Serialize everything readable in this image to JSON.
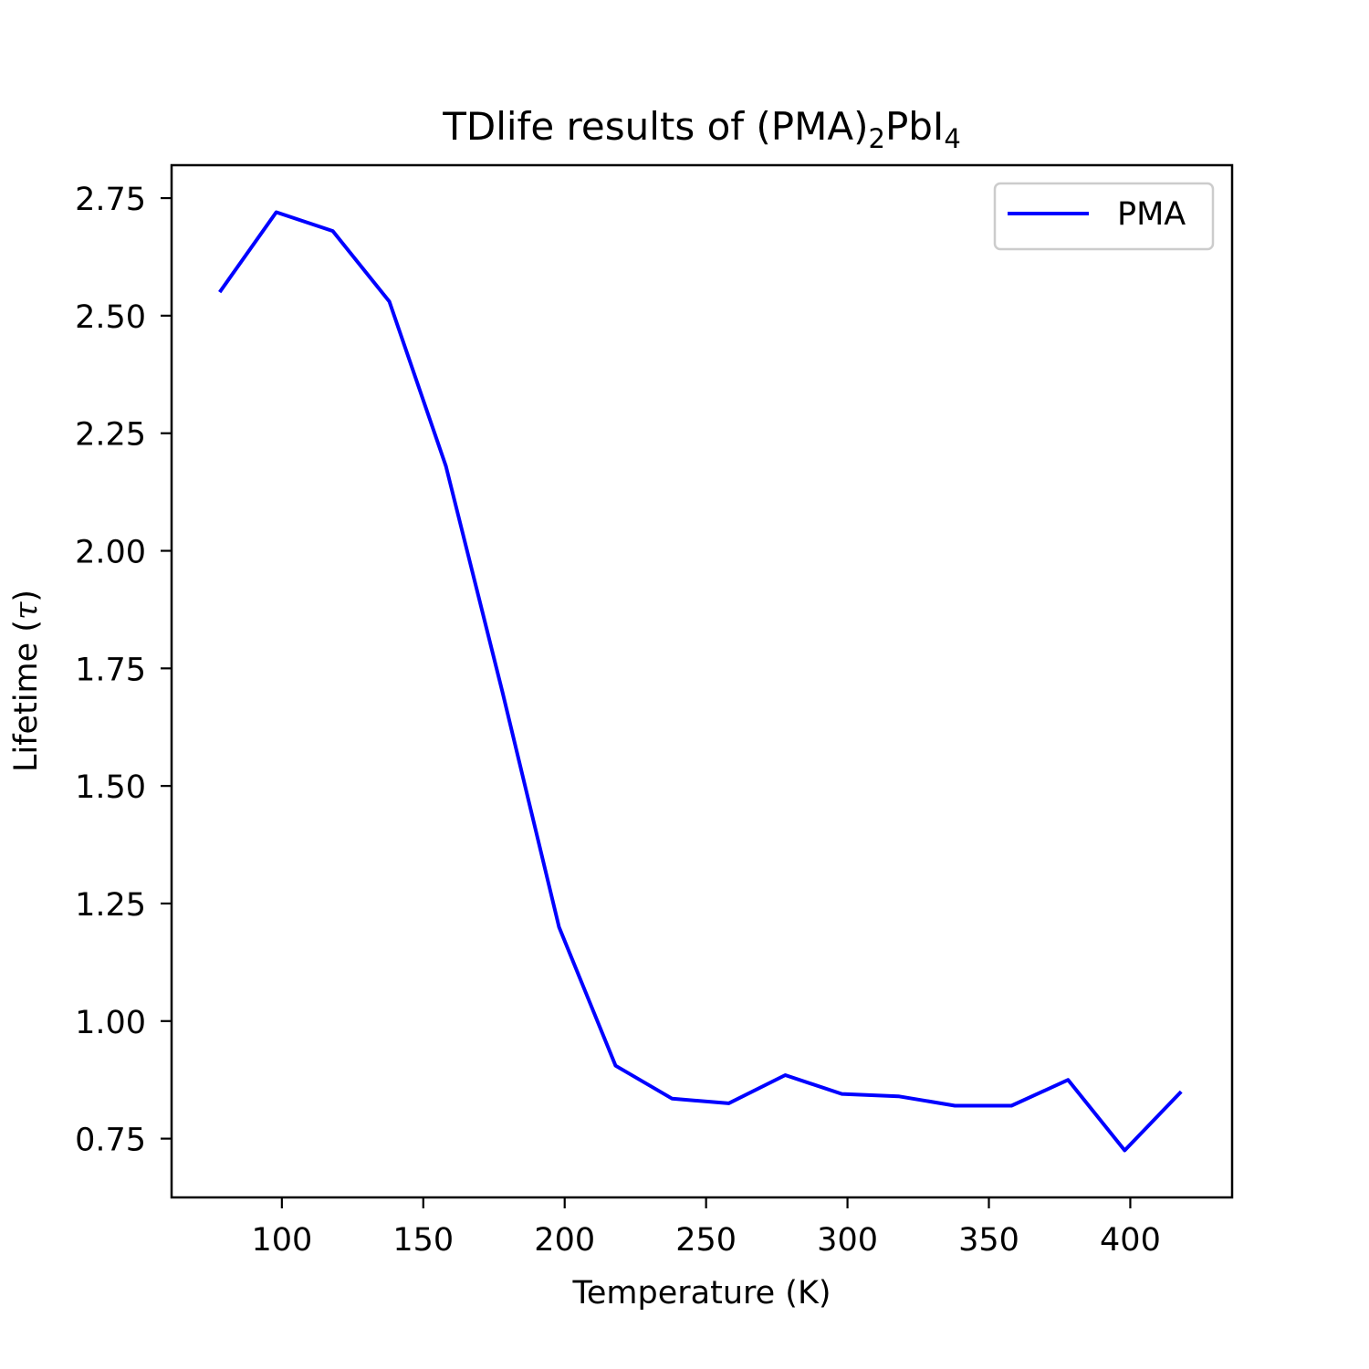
{
  "chart_data": {
    "type": "line",
    "title": "TDlife results of (PMA)",
    "title_sub_1": "2",
    "title_mid": "PbI",
    "title_sub_2": "4",
    "xlabel": "Temperature (K)",
    "ylabel_prefix": "Lifetime (",
    "ylabel_symbol": "τ",
    "ylabel_suffix": ")",
    "xlim": [
      61,
      436
    ],
    "ylim": [
      0.625,
      2.82
    ],
    "xticks": [
      100,
      150,
      200,
      250,
      300,
      350,
      400
    ],
    "xtick_labels": [
      "100",
      "150",
      "200",
      "250",
      "300",
      "350",
      "400"
    ],
    "yticks": [
      0.75,
      1.0,
      1.25,
      1.5,
      1.75,
      2.0,
      2.25,
      2.5,
      2.75
    ],
    "ytick_labels": [
      "0.75",
      "1.00",
      "1.25",
      "1.50",
      "1.75",
      "2.00",
      "2.25",
      "2.50",
      "2.75"
    ],
    "grid": false,
    "legend_position": "top-right",
    "series": [
      {
        "name": "PMA",
        "color": "#0000ff",
        "x": [
          78,
          98,
          118,
          138,
          158,
          178,
          198,
          218,
          238,
          258,
          278,
          298,
          318,
          338,
          358,
          378,
          398,
          418
        ],
        "y": [
          2.55,
          2.72,
          2.68,
          2.53,
          2.18,
          1.7,
          1.2,
          0.905,
          0.835,
          0.825,
          0.885,
          0.845,
          0.84,
          0.82,
          0.82,
          0.875,
          0.725,
          0.85
        ]
      }
    ]
  }
}
